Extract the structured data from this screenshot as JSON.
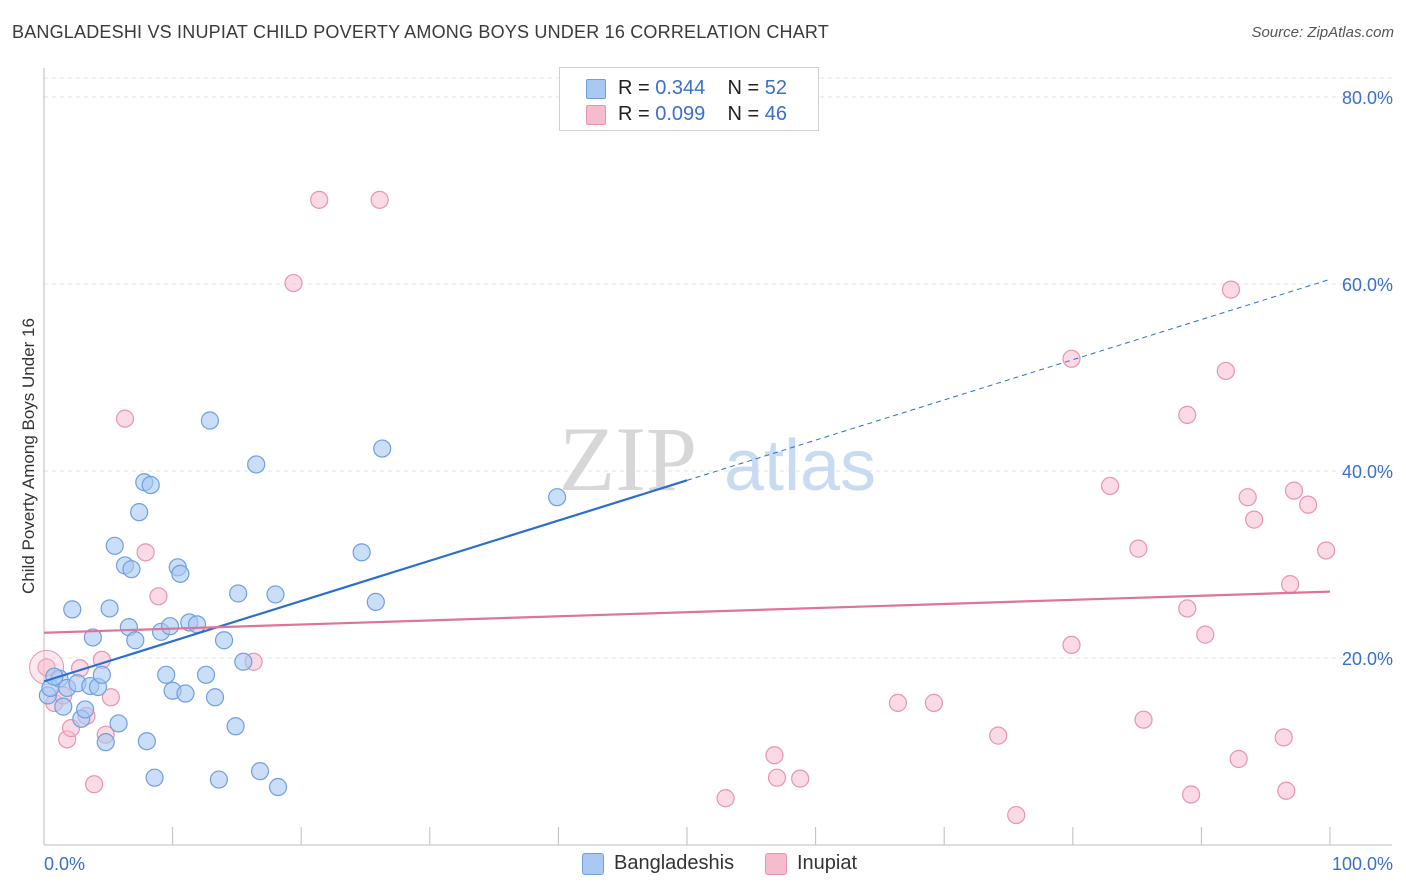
{
  "title": "BANGLADESHI VS INUPIAT CHILD POVERTY AMONG BOYS UNDER 16 CORRELATION CHART",
  "source": "Source: ZipAtlas.com",
  "watermark": {
    "zip": "ZIP",
    "atlas": "atlas"
  },
  "legend": {
    "rows": [
      {
        "r_label": "R = ",
        "r_value": "0.344",
        "n_label": "N = ",
        "n_value": "52"
      },
      {
        "r_label": "R = ",
        "r_value": "0.099",
        "n_label": "N = ",
        "n_value": "46"
      }
    ]
  },
  "bottom_legend": {
    "series1": "Bangladeshis",
    "series2": "Inupiat"
  },
  "colors": {
    "blue_fill": "#a9c8f2",
    "blue_stroke": "#6f9fde",
    "blue_line": "#2a6fd0",
    "pink_fill": "#f6bccd",
    "pink_stroke": "#e994ae",
    "pink_line": "#e0739a",
    "tick_label": "#3a6fcc",
    "grid": "#e3e3e3"
  },
  "chart_data": {
    "type": "scatter",
    "title": "BANGLADESHI VS INUPIAT CHILD POVERTY AMONG BOYS UNDER 16 CORRELATION CHART",
    "xlabel": "",
    "ylabel": "Child Poverty Among Boys Under 16",
    "xlim": [
      0,
      100
    ],
    "ylim": [
      0,
      80
    ],
    "x_tick_labels": [
      "0.0%",
      "100.0%"
    ],
    "y_ticks": [
      20,
      40,
      60,
      80
    ],
    "y_tick_labels": [
      "20.0%",
      "40.0%",
      "60.0%",
      "80.0%"
    ],
    "grid": true,
    "legend_position": "top-center",
    "series": [
      {
        "name": "Bangladeshis",
        "r": 0.344,
        "n": 52,
        "trend": {
          "x": [
            0,
            50
          ],
          "y": [
            17.5,
            39.0
          ],
          "extended_to": [
            100,
            60.5
          ]
        },
        "points": [
          [
            0.3,
            16.0
          ],
          [
            0.5,
            16.8
          ],
          [
            1.2,
            17.8
          ],
          [
            1.5,
            14.8
          ],
          [
            1.8,
            16.8
          ],
          [
            2.2,
            25.2
          ],
          [
            2.6,
            17.3
          ],
          [
            2.9,
            13.5
          ],
          [
            3.2,
            14.5
          ],
          [
            3.6,
            17.0
          ],
          [
            3.8,
            22.2
          ],
          [
            4.2,
            16.9
          ],
          [
            4.5,
            18.2
          ],
          [
            4.8,
            11.0
          ],
          [
            5.1,
            25.3
          ],
          [
            5.5,
            32.0
          ],
          [
            5.8,
            13.0
          ],
          [
            6.3,
            29.9
          ],
          [
            6.6,
            23.3
          ],
          [
            6.8,
            29.5
          ],
          [
            7.1,
            21.9
          ],
          [
            7.4,
            35.6
          ],
          [
            7.8,
            38.8
          ],
          [
            8.0,
            11.1
          ],
          [
            8.3,
            38.5
          ],
          [
            8.6,
            7.2
          ],
          [
            9.1,
            22.8
          ],
          [
            9.5,
            18.2
          ],
          [
            9.8,
            23.4
          ],
          [
            10.0,
            16.5
          ],
          [
            10.4,
            29.7
          ],
          [
            10.6,
            29.0
          ],
          [
            11.0,
            16.2
          ],
          [
            11.3,
            23.8
          ],
          [
            11.9,
            23.6
          ],
          [
            12.6,
            18.2
          ],
          [
            12.9,
            45.4
          ],
          [
            13.3,
            15.8
          ],
          [
            13.6,
            7.0
          ],
          [
            14.0,
            21.9
          ],
          [
            14.9,
            12.7
          ],
          [
            15.1,
            26.9
          ],
          [
            15.5,
            19.6
          ],
          [
            16.5,
            40.7
          ],
          [
            16.8,
            7.9
          ],
          [
            18.0,
            26.8
          ],
          [
            18.2,
            6.2
          ],
          [
            24.7,
            31.3
          ],
          [
            25.8,
            26.0
          ],
          [
            26.3,
            42.4
          ],
          [
            39.9,
            37.2
          ],
          [
            0.8,
            18.0
          ]
        ]
      },
      {
        "name": "Inupiat",
        "r": 0.099,
        "n": 46,
        "trend": {
          "x": [
            0,
            100
          ],
          "y": [
            22.7,
            27.1
          ]
        },
        "points": [
          [
            0.2,
            19.0
          ],
          [
            0.8,
            15.2
          ],
          [
            1.5,
            16.0
          ],
          [
            1.8,
            11.3
          ],
          [
            2.1,
            12.5
          ],
          [
            2.8,
            18.9
          ],
          [
            3.3,
            13.8
          ],
          [
            3.9,
            6.5
          ],
          [
            4.5,
            19.8
          ],
          [
            4.8,
            11.8
          ],
          [
            5.2,
            15.8
          ],
          [
            6.3,
            45.6
          ],
          [
            7.9,
            31.3
          ],
          [
            8.9,
            26.6
          ],
          [
            16.3,
            19.6
          ],
          [
            19.4,
            60.1
          ],
          [
            21.4,
            69.0
          ],
          [
            26.1,
            69.0
          ],
          [
            53.0,
            5.0
          ],
          [
            56.8,
            9.6
          ],
          [
            57.0,
            7.2
          ],
          [
            58.8,
            7.1
          ],
          [
            66.4,
            15.2
          ],
          [
            69.2,
            15.2
          ],
          [
            74.2,
            11.7
          ],
          [
            75.6,
            3.2
          ],
          [
            79.9,
            21.4
          ],
          [
            79.9,
            52.0
          ],
          [
            82.9,
            38.4
          ],
          [
            85.1,
            31.7
          ],
          [
            85.5,
            13.4
          ],
          [
            88.9,
            25.3
          ],
          [
            88.9,
            46.0
          ],
          [
            89.2,
            5.4
          ],
          [
            90.3,
            22.5
          ],
          [
            91.9,
            50.7
          ],
          [
            92.3,
            59.4
          ],
          [
            92.9,
            9.2
          ],
          [
            93.6,
            37.2
          ],
          [
            94.1,
            34.8
          ],
          [
            96.4,
            11.5
          ],
          [
            96.6,
            5.8
          ],
          [
            96.9,
            27.9
          ],
          [
            97.2,
            37.9
          ],
          [
            98.3,
            36.4
          ],
          [
            99.7,
            31.5
          ]
        ]
      }
    ]
  }
}
